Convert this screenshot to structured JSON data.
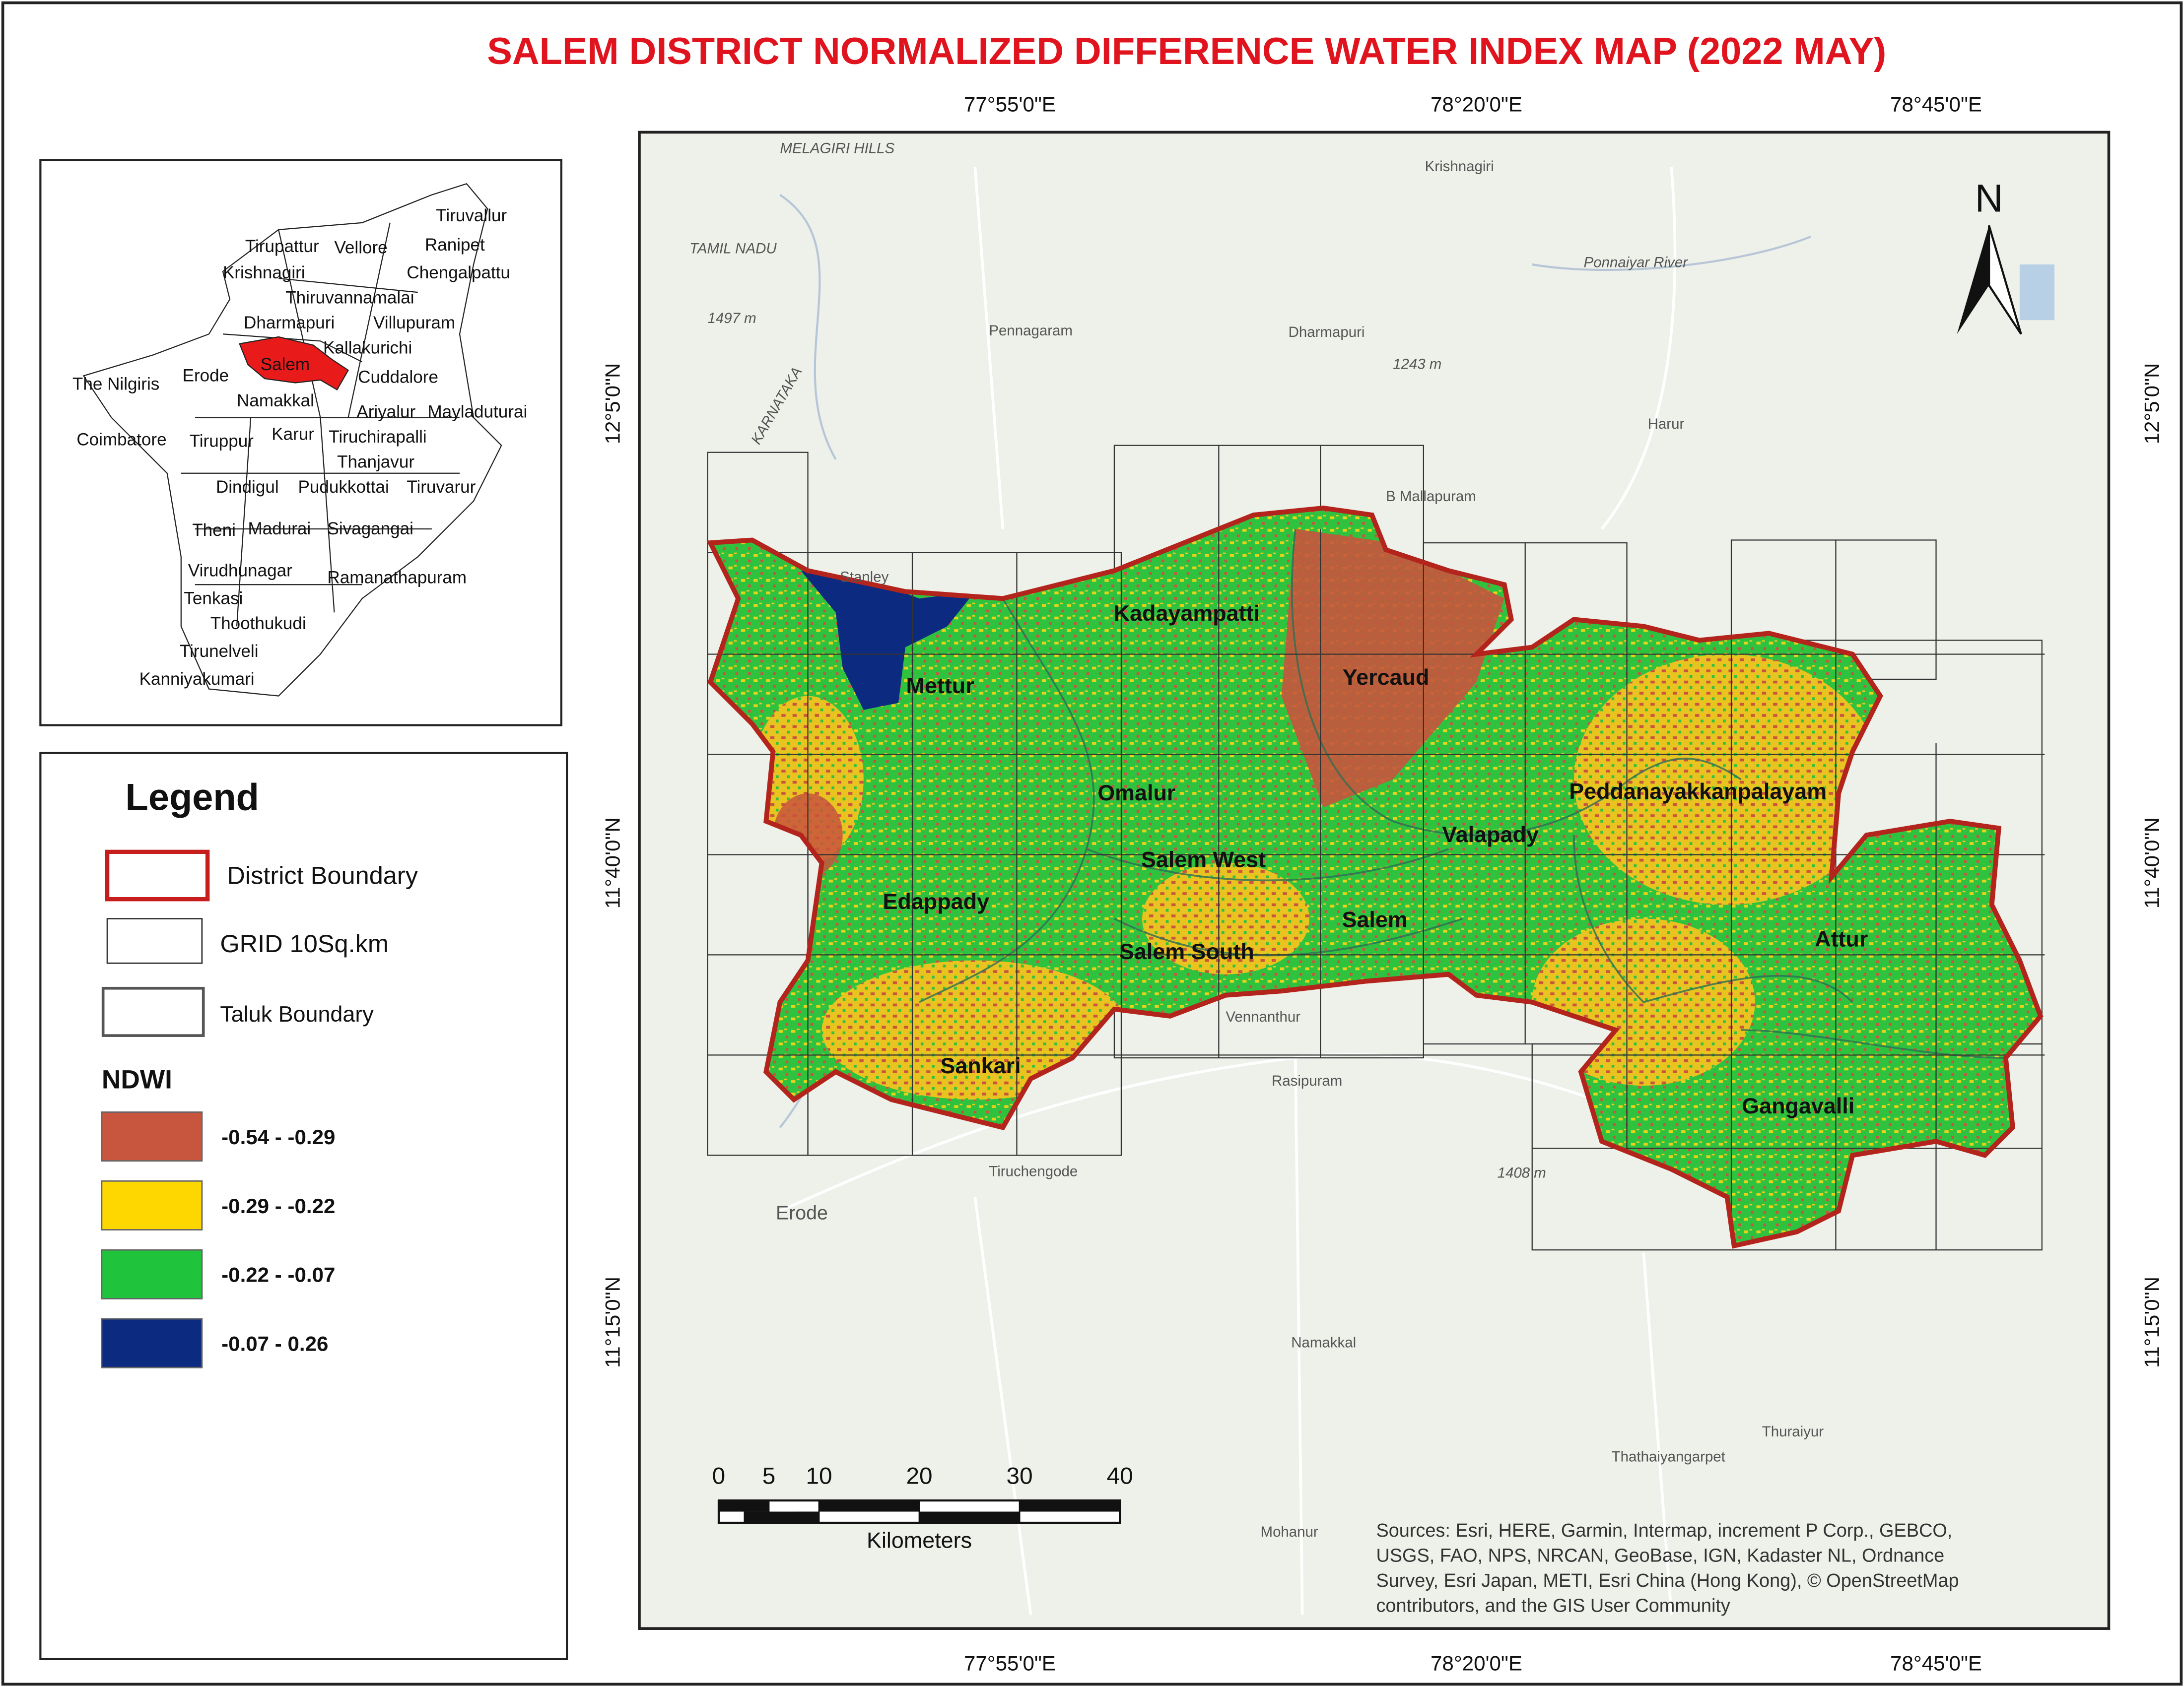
{
  "title": "SALEM DISTRICT NORMALIZED DIFFERENCE WATER INDEX MAP (2022 MAY)",
  "coordinates": {
    "top": [
      "77°55'0\"E",
      "78°20'0\"E",
      "78°45'0\"E"
    ],
    "bottom": [
      "77°55'0\"E",
      "78°20'0\"E",
      "78°45'0\"E"
    ],
    "left": [
      "12°5'0\"N",
      "11°40'0\"N",
      "11°15'0\"N"
    ],
    "right": [
      "12°5'0\"N",
      "11°40'0\"N",
      "11°15'0\"N"
    ]
  },
  "inset": {
    "labels": [
      "Tiruvallur",
      "Tirupattur",
      "Vellore",
      "Ranipet",
      "Krishnagiri",
      "Chengalpattu",
      "Thiruvannamalai",
      "Dharmapuri",
      "Villupuram",
      "Kallakurichi",
      "Salem",
      "Erode",
      "The Nilgiris",
      "Cuddalore",
      "Namakkal",
      "Ariyalur",
      "Mayladuturai",
      "Coimbatore",
      "Tiruppur",
      "Karur",
      "Tiruchirapalli",
      "Thanjavur",
      "Dindigul",
      "Pudukkottai",
      "Tiruvarur",
      "Theni",
      "Madurai",
      "Sivagangai",
      "Virudhunagar",
      "Ramanathapuram",
      "Tenkasi",
      "Thoothukudi",
      "Tirunelveli",
      "Kanniyakumari"
    ]
  },
  "legend": {
    "title": "Legend",
    "district_boundary": "District Boundary",
    "grid": "GRID 10Sq.km",
    "taluk_boundary": "Taluk Boundary",
    "ndwi_title": "NDWI",
    "classes": [
      {
        "label": "-0.54 - -0.29",
        "color": "#c8553d"
      },
      {
        "label": "-0.29 - -0.22",
        "color": "#ffd700"
      },
      {
        "label": "-0.22 - -0.07",
        "color": "#1fc43c"
      },
      {
        "label": "-0.07 - 0.26",
        "color": "#0c2a80"
      }
    ]
  },
  "taluks": [
    "Kadayampatti",
    "Mettur",
    "Yercaud",
    "Omalur",
    "Peddanayakkanpalayam",
    "Valapady",
    "Salem West",
    "Edappady",
    "Salem",
    "Attur",
    "Salem South",
    "Sankari",
    "Gangavalli"
  ],
  "basemap_labels": [
    "MELAGIRI HILLS",
    "Krishnagiri",
    "TAMIL NADU",
    "Ponnaiyar River",
    "Pennagaram",
    "Dharmapuri",
    "Harur",
    "B Mallapuram",
    "KARNATAKA",
    "Stanley",
    "Rasipuram",
    "Vennanthur",
    "Tiruchengode",
    "Erode",
    "Namakkal",
    "Thuraiyur",
    "Thathaiyangarpet",
    "Mohanur",
    "1497 m",
    "1243 m",
    "1408 m"
  ],
  "north_arrow": "N",
  "scale_bar": {
    "ticks": [
      0,
      5,
      10,
      20,
      30,
      40
    ],
    "unit": "Kilometers"
  },
  "sources": [
    "Sources: Esri, HERE, Garmin, Intermap, increment P Corp., GEBCO,",
    "USGS, FAO, NPS, NRCAN, GeoBase, IGN, Kadaster NL, Ordnance",
    "Survey, Esri Japan, METI, Esri China (Hong Kong), © OpenStreetMap",
    "contributors, and the GIS User Community"
  ]
}
